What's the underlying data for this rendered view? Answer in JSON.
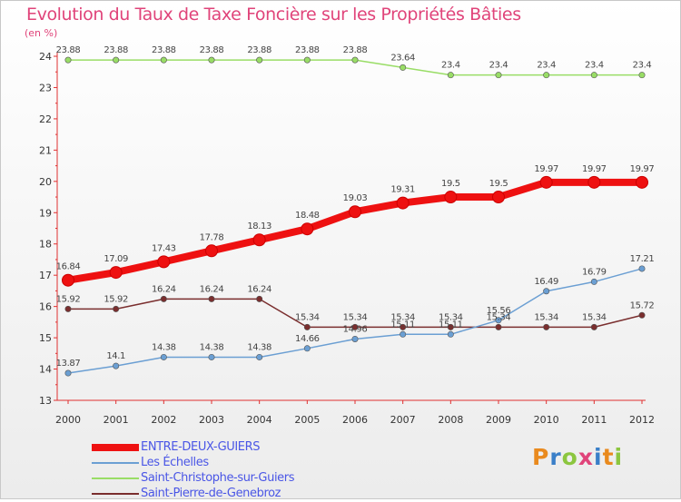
{
  "header": {
    "title": "Evolution du Taux de Taxe Foncière sur les Propriétés Bâties",
    "unit": "(en %)"
  },
  "logo": {
    "letters": [
      "P",
      "r",
      "o",
      "x",
      "i",
      "t",
      "i"
    ],
    "colors": [
      "#e98a1e",
      "#3a7fc8",
      "#8cc63f",
      "#e0447a",
      "#3a7fc8",
      "#e98a1e",
      "#8cc63f"
    ]
  },
  "chart_data": {
    "type": "line",
    "x": [
      "2000",
      "2001",
      "2002",
      "2003",
      "2004",
      "2005",
      "2006",
      "2007",
      "2008",
      "2009",
      "2010",
      "2011",
      "2012"
    ],
    "ylim": [
      13,
      24
    ],
    "yticks": [
      "13",
      "14",
      "15",
      "16",
      "17",
      "18",
      "19",
      "20",
      "21",
      "22",
      "23",
      "24"
    ],
    "grid": false,
    "legend_position": "bottom-left",
    "series": [
      {
        "name": "ENTRE-DEUX-GUIERS",
        "color": "#ee1111",
        "values": [
          16.84,
          17.09,
          17.43,
          17.78,
          18.13,
          18.48,
          19.03,
          19.31,
          19.5,
          19.5,
          19.97,
          19.97,
          19.97
        ],
        "labels": [
          "16.84",
          "17.09",
          "17.43",
          "17.78",
          "18.13",
          "18.48",
          "19.03",
          "19.31",
          "19.5",
          "19.5",
          "19.97",
          "19.97",
          "19.97"
        ]
      },
      {
        "name": "Les Échelles",
        "color": "#6b9fd3",
        "values": [
          13.87,
          14.1,
          14.38,
          14.38,
          14.38,
          14.66,
          14.96,
          15.11,
          15.11,
          15.56,
          16.49,
          16.79,
          17.21
        ],
        "labels": [
          "13.87",
          "14.1",
          "14.38",
          "14.38",
          "14.38",
          "14.66",
          "14.96",
          "15.11",
          "15.11",
          "15.56",
          "16.49",
          "16.79",
          "17.21"
        ]
      },
      {
        "name": "Saint-Christophe-sur-Guiers",
        "color": "#99dd66",
        "values": [
          23.88,
          23.88,
          23.88,
          23.88,
          23.88,
          23.88,
          23.88,
          23.64,
          23.4,
          23.4,
          23.4,
          23.4,
          23.4
        ],
        "labels": [
          "23.88",
          "23.88",
          "23.88",
          "23.88",
          "23.88",
          "23.88",
          "23.88",
          "23.64",
          "23.4",
          "23.4",
          "23.4",
          "23.4",
          "23.4"
        ]
      },
      {
        "name": "Saint-Pierre-de-Genebroz",
        "color": "#7a2e2e",
        "values": [
          15.92,
          15.92,
          16.24,
          16.24,
          16.24,
          15.34,
          15.34,
          15.34,
          15.34,
          15.34,
          15.34,
          15.34,
          15.72
        ],
        "labels": [
          "15.92",
          "15.92",
          "16.24",
          "16.24",
          "16.24",
          "15.34",
          "15.34",
          "15.34",
          "15.34",
          "15.34",
          "15.34",
          "15.34",
          "15.72"
        ]
      }
    ]
  }
}
